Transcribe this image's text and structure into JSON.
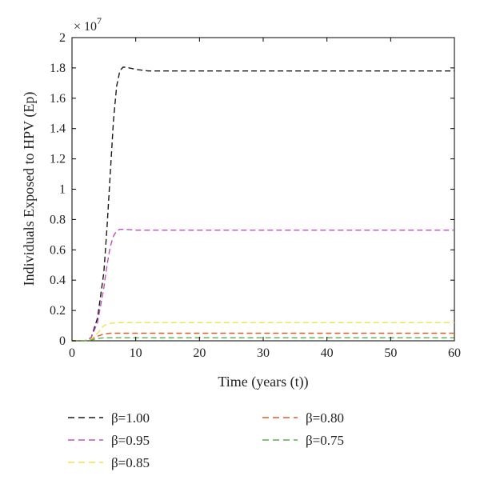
{
  "chart_data": {
    "type": "line",
    "xlabel": "Time (years (t))",
    "ylabel": "Individuals Exposed to HPV (Ep)",
    "y_multiplier": "× 10",
    "y_multiplier_exp": "7",
    "xlim": [
      0,
      60
    ],
    "ylim": [
      0,
      2
    ],
    "x_ticks": [
      0,
      10,
      20,
      30,
      40,
      50,
      60
    ],
    "y_ticks": [
      0,
      0.2,
      0.4,
      0.6,
      0.8,
      1,
      1.2,
      1.4,
      1.6,
      1.8,
      2
    ],
    "grid": false,
    "legend_position": "bottom",
    "series": [
      {
        "name": "β=1.00",
        "color": "#1a1a1a",
        "x": [
          0,
          2,
          3,
          4,
          5,
          5.5,
          6,
          6.5,
          7,
          7.5,
          8,
          8.5,
          9,
          10,
          12,
          15,
          20,
          30,
          40,
          50,
          60
        ],
        "y": [
          0,
          0,
          0.02,
          0.15,
          0.45,
          0.75,
          1.1,
          1.45,
          1.68,
          1.78,
          1.805,
          1.805,
          1.8,
          1.79,
          1.78,
          1.78,
          1.78,
          1.78,
          1.78,
          1.78,
          1.78
        ]
      },
      {
        "name": "β=0.95",
        "color": "#c050c0",
        "x": [
          0,
          2,
          3,
          4,
          5,
          5.5,
          6,
          6.5,
          7,
          7.5,
          8,
          9,
          10,
          15,
          20,
          30,
          40,
          50,
          60
        ],
        "y": [
          0,
          0,
          0.02,
          0.12,
          0.35,
          0.5,
          0.62,
          0.69,
          0.725,
          0.735,
          0.735,
          0.733,
          0.73,
          0.73,
          0.73,
          0.73,
          0.73,
          0.73,
          0.73
        ]
      },
      {
        "name": "β=0.80",
        "color": "#e05a2a",
        "x": [
          0,
          2,
          3,
          4,
          5,
          6,
          7,
          8,
          10,
          20,
          30,
          40,
          50,
          60
        ],
        "y": [
          0,
          0,
          0.01,
          0.03,
          0.045,
          0.05,
          0.05,
          0.05,
          0.05,
          0.05,
          0.05,
          0.05,
          0.05,
          0.05
        ]
      },
      {
        "name": "β=0.85",
        "color": "#f2e24a",
        "x": [
          0,
          2,
          3,
          4,
          5,
          6,
          7,
          8,
          10,
          20,
          30,
          40,
          50,
          60
        ],
        "y": [
          0,
          0,
          0.01,
          0.05,
          0.1,
          0.115,
          0.12,
          0.12,
          0.12,
          0.12,
          0.12,
          0.12,
          0.12,
          0.12
        ]
      },
      {
        "name": "β=0.75",
        "color": "#5aae4a",
        "x": [
          0,
          2,
          3,
          4,
          5,
          6,
          8,
          10,
          20,
          30,
          40,
          50,
          60
        ],
        "y": [
          0,
          0,
          0.005,
          0.015,
          0.02,
          0.02,
          0.02,
          0.02,
          0.02,
          0.02,
          0.02,
          0.02,
          0.02
        ]
      }
    ],
    "legend_order": [
      "β=1.00",
      "β=0.80",
      "β=0.95",
      "β=0.75",
      "β=0.85"
    ]
  }
}
